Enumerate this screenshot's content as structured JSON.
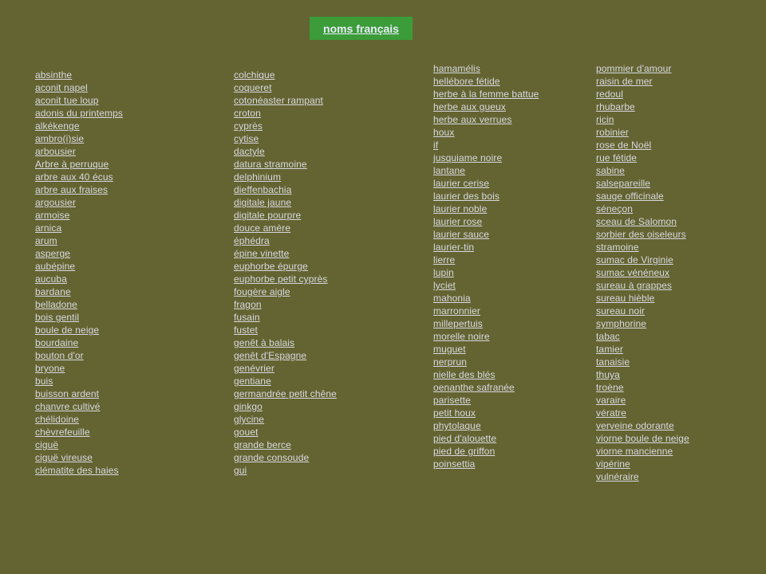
{
  "header": {
    "title": "noms français"
  },
  "colors": {
    "background": "#646432",
    "title_button": "#3c9c3a",
    "link": "#d8d8e0"
  },
  "columns": [
    [
      "absinthe",
      "aconit napel",
      "aconit  tue loup",
      "adonis du printemps",
      "alkékenge",
      "ambro(i)sie",
      "arbousier",
      "Arbre à perruque",
      "arbre aux 40 écus",
      "arbre aux fraises",
      "argousier",
      "armoise",
      "arnica",
      "arum",
      "asperge",
      "aubépine",
      "aucuba",
      "bardane",
      "belladone",
      "bois gentil",
      "boule de neige",
      "bourdaine",
      "bouton d'or",
      "bryone",
      "buis",
      "buisson ardent",
      "chanvre cultivé",
      "chélidoine",
      "chèvrefeuille",
      "ciguë",
      "ciguë vireuse",
      "clématite des haies"
    ],
    [
      "colchique",
      "coqueret",
      "cotonéaster rampant",
      "croton",
      "cyprès",
      "cytise",
      "dactyle",
      "datura stramoine",
      "delphinium",
      "dieffenbachia",
      "digitale jaune",
      "digitale pourpre",
      "douce amère",
      "éphédra",
      "épine vinette",
      "euphorbe épurge",
      "euphorbe petit cyprès",
      "fougère aigle",
      "fragon",
      "fusain",
      "fustet",
      "genêt à balais",
      "genêt d'Espagne",
      "genévrier",
      "gentiane",
      "germandrée petit chêne",
      "ginkgo",
      "glycine",
      "gouet",
      "grande berce",
      "grande consoude",
      "gui"
    ],
    [
      "hamamélis",
      "hellébore fétide",
      "herbe à la  femme battue",
      "herbe aux gueux",
      "herbe aux verrues",
      "houx",
      "if",
      "jusquiame noire",
      "lantane",
      "laurier cerise",
      "laurier des bois",
      "laurier noble",
      "laurier rose",
      "laurier sauce",
      "laurier-tin",
      "lierre",
      "lupin",
      "lyciet",
      "mahonia",
      "marronnier",
      "millepertuis",
      "morelle noire",
      "muguet",
      "nerprun",
      "nielle des blés",
      "oenanthe safranée",
      "parisette",
      "petit houx",
      "phytolaque",
      "pied d'alouette",
      "pied de griffon",
      "poinsettia"
    ],
    [
      "pommier d'amour",
      "raisin de mer",
      "redoul",
      "rhubarbe",
      "ricin",
      "robinier",
      "rose de Noël",
      "rue fétide",
      "sabine",
      "salsepareille",
      "sauge officinale",
      "séneçon",
      "sceau de Salomon",
      "sorbier des oiseleurs",
      "stramoine",
      "sumac de Virginie",
      "sumac vénéneux",
      "sureau à grappes",
      "sureau hièble",
      "sureau noir",
      "symphorine",
      "tabac",
      "tamier",
      "tanaisie",
      "thuya",
      "troène",
      "varaire",
      "vératre",
      "verveine odorante",
      "viorne boule de neige",
      "viorne mancienne",
      "vipérine",
      "vulnéraire"
    ]
  ]
}
